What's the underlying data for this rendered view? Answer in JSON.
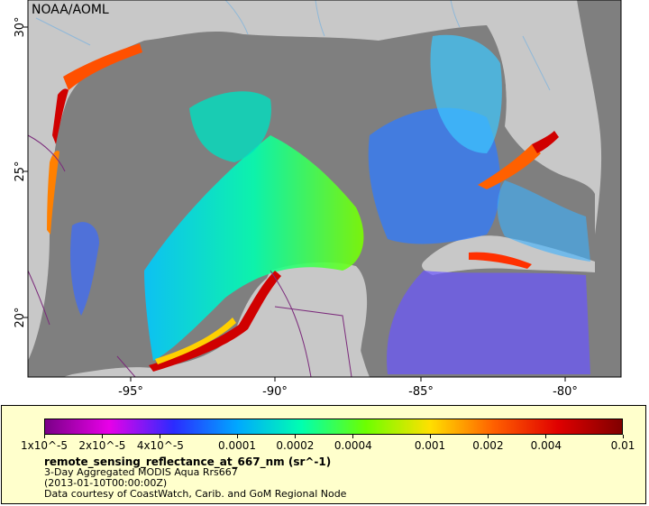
{
  "map": {
    "credit": "NOAA/AOML",
    "lon_ticks": [
      "-95°",
      "-90°",
      "-85°",
      "-80°"
    ],
    "lat_ticks": [
      "30°",
      "25°",
      "20°"
    ],
    "extent": {
      "lon_min": -98,
      "lon_max": -78,
      "lat_min": 18,
      "lat_max": 31
    },
    "colors": {
      "land": "#c8c8c8",
      "ocean_nodata": "#7f7f7f",
      "border": "#7b2a7b",
      "river": "#8fb8d8"
    }
  },
  "legend": {
    "variable": "remote_sensing_reflectance_at_667_nm (sr^-1)",
    "line1": "3-Day Aggregated MODIS Aqua Rrs667",
    "line2": "(2013-01-10T00:00:00Z)",
    "line3": "Data courtesy of CoastWatch, Carib. and GoM Regional Node",
    "ticks": [
      "1x10^-5",
      "2x10^-5",
      "4x10^-5",
      "0.0001",
      "0.0002",
      "0.0004",
      "0.001",
      "0.002",
      "0.004",
      "0.01"
    ],
    "scale_values": [
      1e-05,
      2e-05,
      4e-05,
      0.0001,
      0.0002,
      0.0004,
      0.001,
      0.002,
      0.004,
      0.01
    ],
    "scale": "log",
    "gradient": [
      "#7a0087",
      "#e800e8",
      "#2b2bff",
      "#00a8ff",
      "#00ffb0",
      "#6cff00",
      "#ffe000",
      "#ff6000",
      "#e00000",
      "#800000"
    ]
  }
}
